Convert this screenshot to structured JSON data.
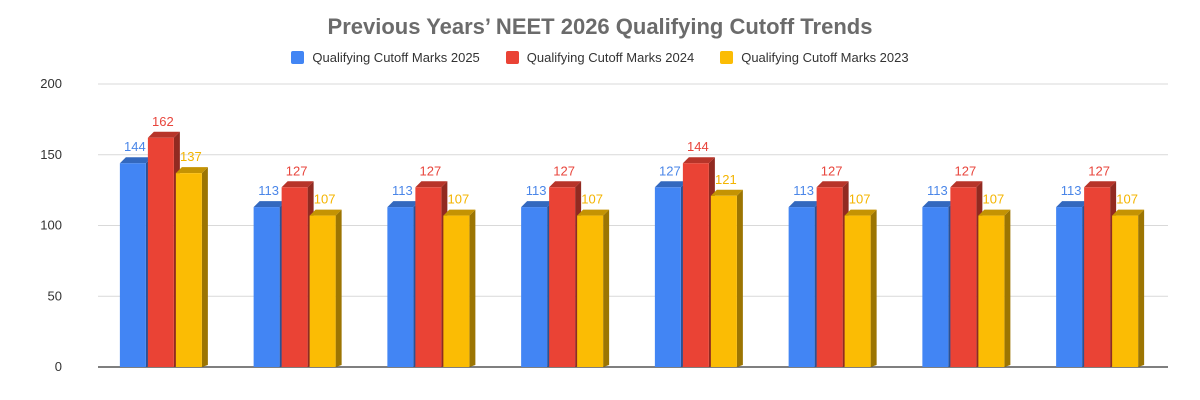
{
  "chart_data": {
    "type": "bar",
    "title": "Previous Years’ NEET 2026 Qualifying Cutoff Trends",
    "xlabel": "",
    "ylabel": "",
    "ylim": [
      0,
      200
    ],
    "yticks": [
      0,
      50,
      100,
      150,
      200
    ],
    "grid": true,
    "legend_position": "top",
    "categories": [
      "",
      "",
      "",
      "",
      "",
      "",
      "",
      ""
    ],
    "series": [
      {
        "name": "Qualifying Cutoff Marks 2025",
        "color": "#4285f4",
        "label_color": "#4a86e8",
        "values": [
          144,
          113,
          113,
          113,
          127,
          113,
          113,
          113
        ]
      },
      {
        "name": "Qualifying Cutoff Marks 2024",
        "color": "#ea4335",
        "label_color": "#e8453c",
        "values": [
          162,
          127,
          127,
          127,
          144,
          127,
          127,
          127
        ]
      },
      {
        "name": "Qualifying Cutoff Marks 2023",
        "color": "#fbbc04",
        "label_color": "#f4b400",
        "values": [
          137,
          107,
          107,
          107,
          121,
          107,
          107,
          107
        ]
      }
    ]
  }
}
